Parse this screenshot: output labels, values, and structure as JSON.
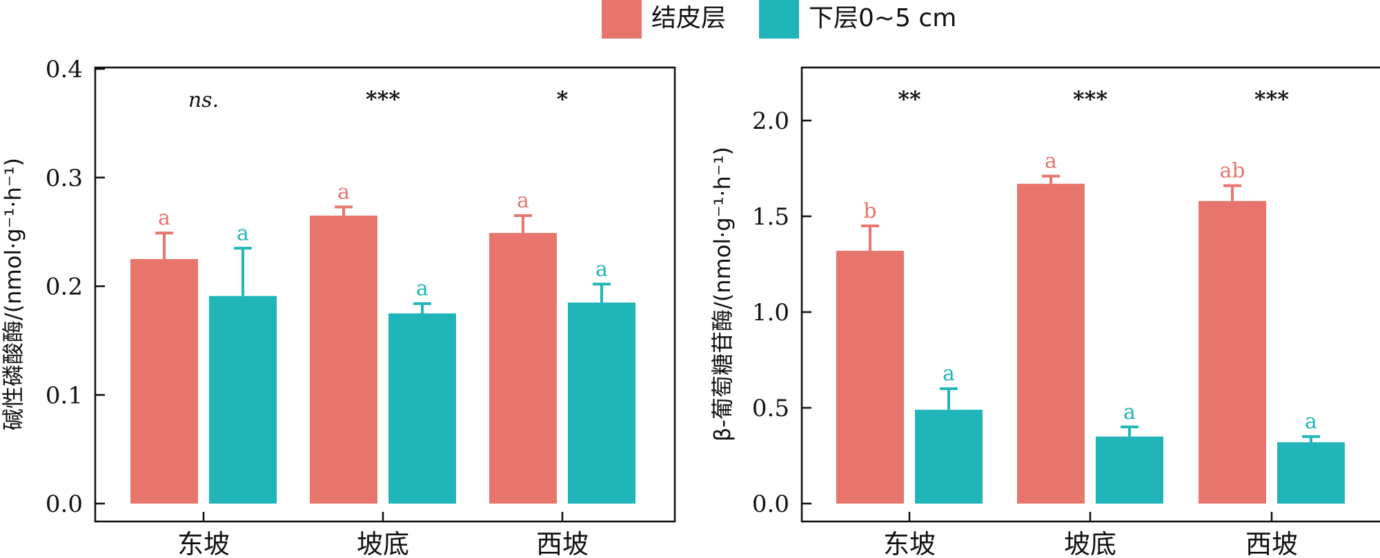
{
  "legend": {
    "items": [
      {
        "label": "结皮层",
        "color": "#E8756C"
      },
      {
        "label": "下层0~5 cm",
        "color": "#20B5B8"
      }
    ]
  },
  "chart_data": [
    {
      "type": "bar",
      "categories": [
        "东坡",
        "坡底",
        "西坡"
      ],
      "ylabel": "碱性磷酸酶/(nmol·g⁻¹·h⁻¹)",
      "ylim": [
        0,
        0.4
      ],
      "yticks": [
        "0.0",
        "0.1",
        "0.2",
        "0.3",
        "0.4"
      ],
      "series": [
        {
          "name": "结皮层",
          "color": "#E8756C",
          "values": [
            0.225,
            0.265,
            0.249
          ],
          "errors": [
            0.024,
            0.008,
            0.016
          ],
          "letters": [
            "a",
            "a",
            "a"
          ]
        },
        {
          "name": "下层0~5 cm",
          "color": "#20B5B8",
          "values": [
            0.191,
            0.175,
            0.185
          ],
          "errors": [
            0.044,
            0.009,
            0.017
          ],
          "letters": [
            "a",
            "a",
            "a"
          ]
        }
      ],
      "significance": [
        "ns.",
        "***",
        "*"
      ]
    },
    {
      "type": "bar",
      "categories": [
        "东坡",
        "坡底",
        "西坡"
      ],
      "ylabel": "β-葡萄糖苷酶/(nmol·g⁻¹·h⁻¹)",
      "ylim": [
        0,
        2.25
      ],
      "yticks": [
        "0.0",
        "0.5",
        "1.0",
        "1.5",
        "2.0"
      ],
      "series": [
        {
          "name": "结皮层",
          "color": "#E8756C",
          "values": [
            1.32,
            1.67,
            1.58
          ],
          "errors": [
            0.13,
            0.04,
            0.08
          ],
          "letters": [
            "b",
            "a",
            "ab"
          ]
        },
        {
          "name": "下层0~5 cm",
          "color": "#20B5B8",
          "values": [
            0.49,
            0.35,
            0.32
          ],
          "errors": [
            0.11,
            0.05,
            0.03
          ],
          "letters": [
            "a",
            "a",
            "a"
          ]
        }
      ],
      "significance": [
        "**",
        "***",
        "***"
      ]
    }
  ]
}
